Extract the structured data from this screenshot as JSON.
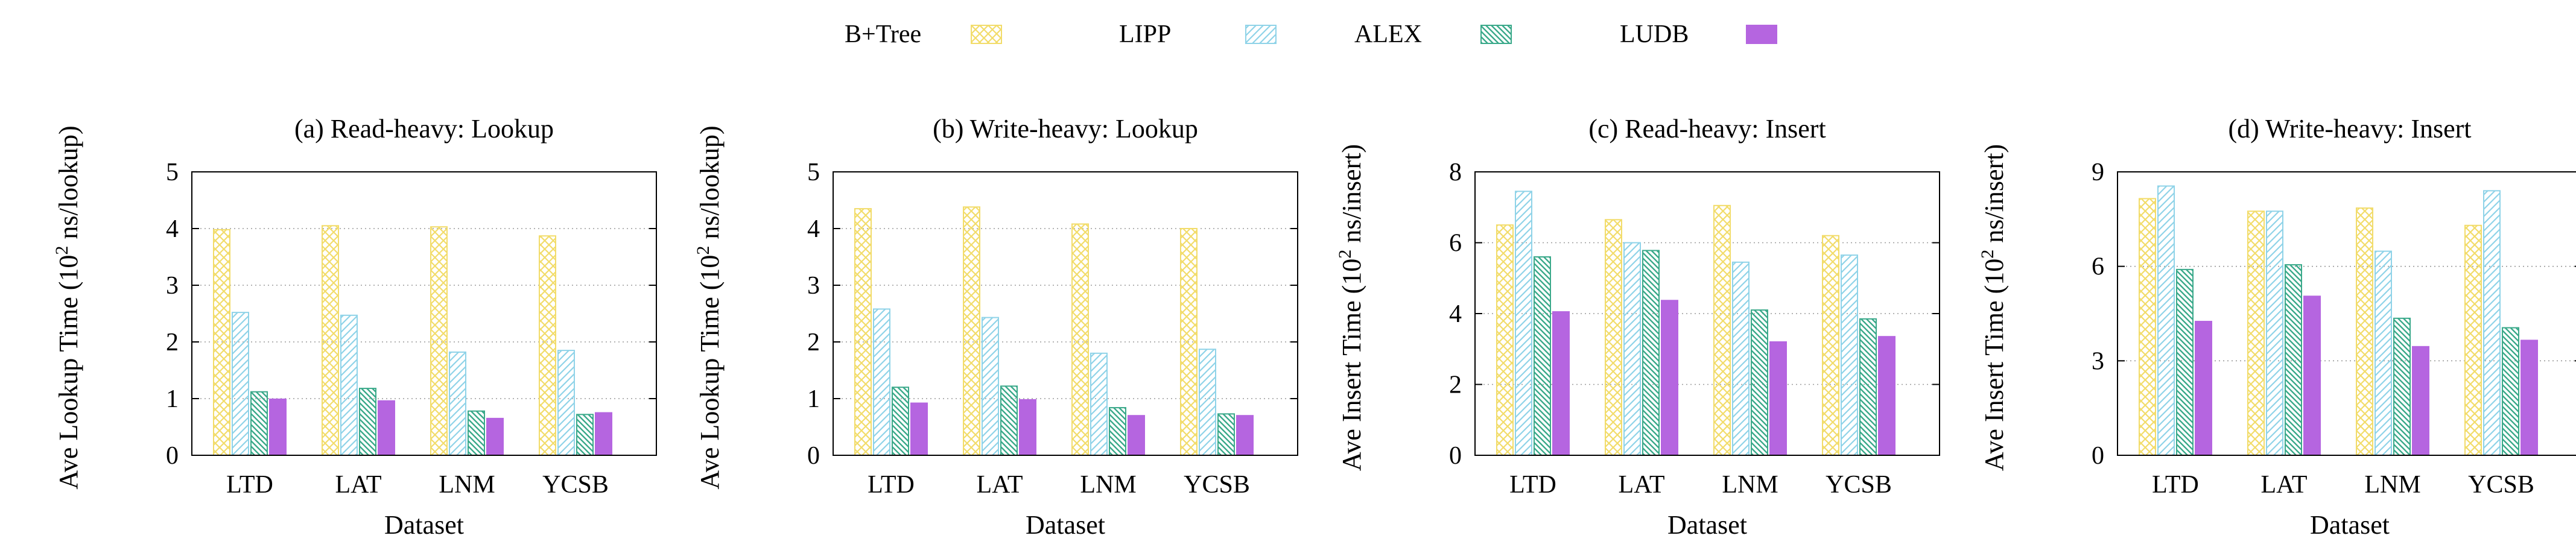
{
  "legend": [
    {
      "name": "B+Tree",
      "color": "#f2dc6a",
      "pattern": "crosshatch"
    },
    {
      "name": "LIPP",
      "color": "#8fd3e8",
      "pattern": "diag-back"
    },
    {
      "name": "ALEX",
      "color": "#3aa98a",
      "pattern": "diag-fwd"
    },
    {
      "name": "LUDB",
      "color": "#b565e0",
      "pattern": "solid"
    }
  ],
  "chart_data": [
    {
      "type": "bar",
      "title": "(a) Read-heavy: Lookup",
      "xlabel": "Dataset",
      "ylabel_main": "Ave Lookup Time (10",
      "ylabel_sup": "2",
      "ylabel_tail": " ns/lookup)",
      "ylim": [
        0,
        5
      ],
      "yticks": [
        0,
        1,
        2,
        3,
        4,
        5
      ],
      "categories": [
        "LTD",
        "LAT",
        "LNM",
        "YCSB"
      ],
      "series": [
        {
          "name": "B+Tree",
          "values": [
            3.98,
            4.05,
            4.03,
            3.87
          ]
        },
        {
          "name": "LIPP",
          "values": [
            2.52,
            2.47,
            1.82,
            1.85
          ]
        },
        {
          "name": "ALEX",
          "values": [
            1.12,
            1.18,
            0.78,
            0.72
          ]
        },
        {
          "name": "LUDB",
          "values": [
            0.99,
            0.96,
            0.65,
            0.75
          ]
        }
      ]
    },
    {
      "type": "bar",
      "title": "(b) Write-heavy: Lookup",
      "xlabel": "Dataset",
      "ylabel_main": "Ave Lookup Time (10",
      "ylabel_sup": "2",
      "ylabel_tail": " ns/lookup)",
      "ylim": [
        0,
        5
      ],
      "yticks": [
        0,
        1,
        2,
        3,
        4,
        5
      ],
      "categories": [
        "LTD",
        "LAT",
        "LNM",
        "YCSB"
      ],
      "series": [
        {
          "name": "B+Tree",
          "values": [
            4.35,
            4.38,
            4.08,
            4.0
          ]
        },
        {
          "name": "LIPP",
          "values": [
            2.58,
            2.43,
            1.8,
            1.87
          ]
        },
        {
          "name": "ALEX",
          "values": [
            1.2,
            1.22,
            0.84,
            0.73
          ]
        },
        {
          "name": "LUDB",
          "values": [
            0.92,
            0.98,
            0.7,
            0.7
          ]
        }
      ]
    },
    {
      "type": "bar",
      "title": "(c) Read-heavy: Insert",
      "xlabel": "Dataset",
      "ylabel_main": "Ave Insert Time (10",
      "ylabel_sup": "2",
      "ylabel_tail": " ns/insert)",
      "ylim": [
        0,
        8
      ],
      "yticks": [
        0,
        2,
        4,
        6,
        8
      ],
      "categories": [
        "LTD",
        "LAT",
        "LNM",
        "YCSB"
      ],
      "series": [
        {
          "name": "B+Tree",
          "values": [
            6.5,
            6.65,
            7.05,
            6.2
          ]
        },
        {
          "name": "LIPP",
          "values": [
            7.45,
            6.0,
            5.45,
            5.65
          ]
        },
        {
          "name": "ALEX",
          "values": [
            5.6,
            5.78,
            4.1,
            3.85
          ]
        },
        {
          "name": "LUDB",
          "values": [
            4.05,
            4.37,
            3.2,
            3.35
          ]
        }
      ]
    },
    {
      "type": "bar",
      "title": "(d) Write-heavy: Insert",
      "xlabel": "Dataset",
      "ylabel_main": "Ave Insert Time (10",
      "ylabel_sup": "2",
      "ylabel_tail": " ns/insert)",
      "ylim": [
        0,
        9
      ],
      "yticks": [
        0,
        3,
        6,
        9
      ],
      "categories": [
        "LTD",
        "LAT",
        "LNM",
        "YCSB"
      ],
      "series": [
        {
          "name": "B+Tree",
          "values": [
            8.15,
            7.75,
            7.85,
            7.3
          ]
        },
        {
          "name": "LIPP",
          "values": [
            8.55,
            7.75,
            6.48,
            8.4
          ]
        },
        {
          "name": "ALEX",
          "values": [
            5.9,
            6.05,
            4.35,
            4.05
          ]
        },
        {
          "name": "LUDB",
          "values": [
            4.25,
            5.05,
            3.45,
            3.65
          ]
        }
      ]
    }
  ]
}
